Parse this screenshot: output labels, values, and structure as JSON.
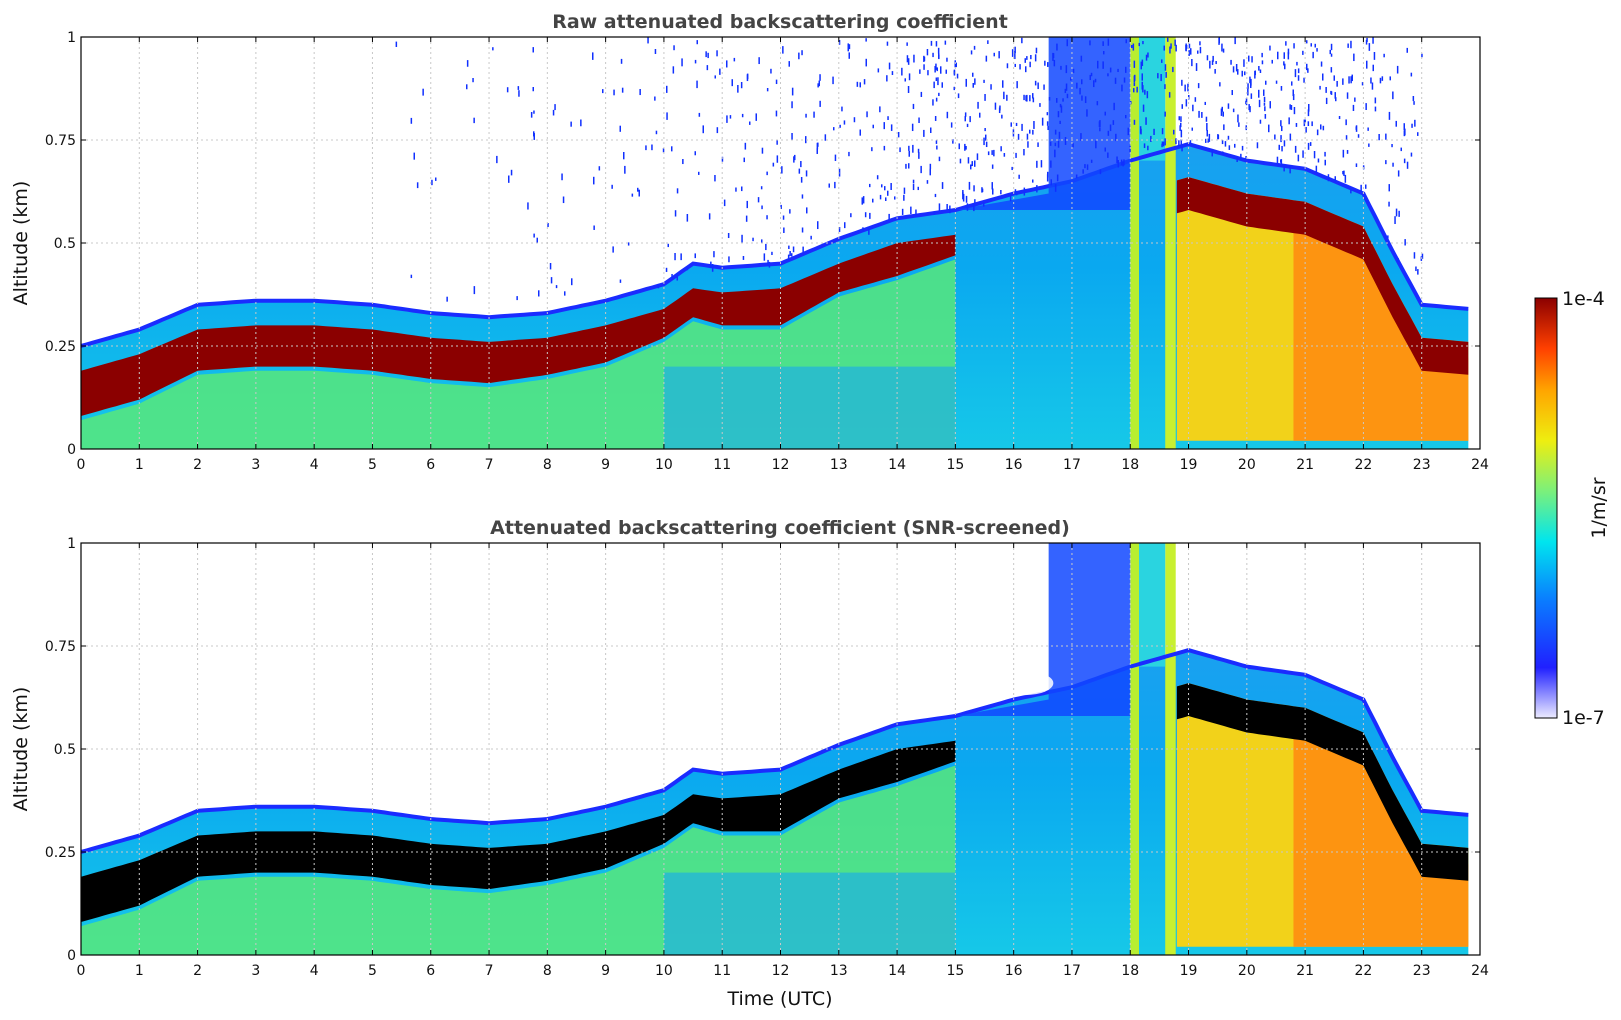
{
  "chart_data": [
    {
      "type": "heatmap",
      "title": "Raw attenuated backscattering coefficient",
      "xlabel": "",
      "ylabel": "Altitude (km)",
      "xlim": [
        0,
        24
      ],
      "ylim": [
        0,
        1
      ],
      "x_ticks": [
        "0",
        "1",
        "2",
        "3",
        "4",
        "5",
        "6",
        "7",
        "8",
        "9",
        "10",
        "11",
        "12",
        "13",
        "14",
        "15",
        "16",
        "17",
        "18",
        "19",
        "20",
        "21",
        "22",
        "23",
        "24"
      ],
      "y_ticks": [
        "0",
        "0.25",
        "0.5",
        "0.75",
        "1"
      ],
      "grid": true,
      "screened": false,
      "layer_top_km": [
        [
          0,
          0.25
        ],
        [
          1,
          0.29
        ],
        [
          2,
          0.35
        ],
        [
          3,
          0.36
        ],
        [
          4,
          0.36
        ],
        [
          5,
          0.35
        ],
        [
          6,
          0.33
        ],
        [
          7,
          0.32
        ],
        [
          8,
          0.33
        ],
        [
          9,
          0.36
        ],
        [
          10,
          0.4
        ],
        [
          10.5,
          0.45
        ],
        [
          11,
          0.44
        ],
        [
          12,
          0.45
        ],
        [
          13,
          0.51
        ],
        [
          14,
          0.56
        ],
        [
          15,
          0.58
        ],
        [
          16,
          0.62
        ],
        [
          17,
          0.65
        ],
        [
          18,
          0.7
        ],
        [
          19,
          0.74
        ],
        [
          20,
          0.7
        ],
        [
          21,
          0.68
        ],
        [
          22,
          0.62
        ],
        [
          22.5,
          0.48
        ],
        [
          23,
          0.35
        ],
        [
          23.8,
          0.34
        ]
      ],
      "layer_base_km": [
        [
          0,
          0.08
        ],
        [
          1,
          0.12
        ],
        [
          2,
          0.19
        ],
        [
          3,
          0.2
        ],
        [
          4,
          0.2
        ],
        [
          5,
          0.19
        ],
        [
          6,
          0.17
        ],
        [
          7,
          0.16
        ],
        [
          8,
          0.18
        ],
        [
          9,
          0.21
        ],
        [
          10,
          0.27
        ],
        [
          10.5,
          0.32
        ],
        [
          11,
          0.3
        ],
        [
          12,
          0.3
        ],
        [
          13,
          0.38
        ],
        [
          14,
          0.42
        ],
        [
          15,
          0.47
        ]
      ]
    },
    {
      "type": "heatmap",
      "title": "Attenuated backscattering coefficient (SNR-screened)",
      "xlabel": "Time (UTC)",
      "ylabel": "Altitude (km)",
      "xlim": [
        0,
        24
      ],
      "ylim": [
        0,
        1
      ],
      "x_ticks": [
        "0",
        "1",
        "2",
        "3",
        "4",
        "5",
        "6",
        "7",
        "8",
        "9",
        "10",
        "11",
        "12",
        "13",
        "14",
        "15",
        "16",
        "17",
        "18",
        "19",
        "20",
        "21",
        "22",
        "23",
        "24"
      ],
      "y_ticks": [
        "0",
        "0.25",
        "0.5",
        "0.75",
        "1"
      ],
      "grid": true,
      "screened": true
    }
  ],
  "colorbar": {
    "label": "1/m/sr",
    "max_label": "1e-4",
    "min_label": "1e-7",
    "scale": "log",
    "colors": [
      "#ecebff",
      "#2020ff",
      "#0a7cff",
      "#00e5ee",
      "#7bf07b",
      "#eeee10",
      "#ffa500",
      "#ff4000",
      "#8b0000"
    ]
  }
}
